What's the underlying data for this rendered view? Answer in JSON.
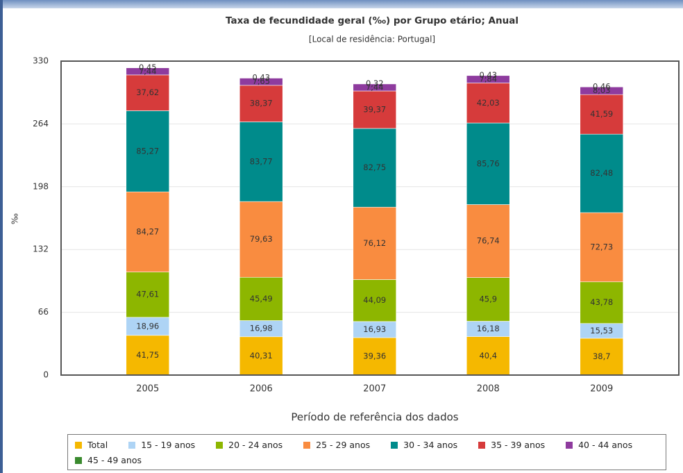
{
  "chart_data": {
    "type": "bar",
    "stacked": true,
    "title": "Taxa de fecundidade geral (‰) por Grupo etário; Anual",
    "subtitle": "[Local de residência: Portugal]",
    "y_label": "‰",
    "x_label": "Período de referência dos dados",
    "categories": [
      "2005",
      "2006",
      "2007",
      "2008",
      "2009"
    ],
    "ylim": [
      0,
      330
    ],
    "yticks": [
      0,
      66,
      132,
      198,
      264,
      330
    ],
    "grid": true,
    "series": [
      {
        "name": "Total",
        "color": "#f5b800",
        "values": [
          41.75,
          40.31,
          39.36,
          40.4,
          38.7
        ],
        "value_labels": [
          "41,75",
          "40,31",
          "39,36",
          "40,4",
          "38,7"
        ]
      },
      {
        "name": "15 - 19 anos",
        "color": "#aed4f5",
        "values": [
          18.96,
          16.98,
          16.93,
          16.18,
          15.53
        ],
        "value_labels": [
          "18,96",
          "16,98",
          "16,93",
          "16,18",
          "15,53"
        ]
      },
      {
        "name": "20 - 24 anos",
        "color": "#8db600",
        "values": [
          47.61,
          45.49,
          44.09,
          45.9,
          43.78
        ],
        "value_labels": [
          "47,61",
          "45,49",
          "44,09",
          "45,9",
          "43,78"
        ]
      },
      {
        "name": "25 - 29 anos",
        "color": "#f98c40",
        "values": [
          84.27,
          79.63,
          76.12,
          76.74,
          72.73
        ],
        "value_labels": [
          "84,27",
          "79,63",
          "76,12",
          "76,74",
          "72,73"
        ]
      },
      {
        "name": "30 - 34 anos",
        "color": "#008b8b",
        "values": [
          85.27,
          83.77,
          82.75,
          85.76,
          82.48
        ],
        "value_labels": [
          "85,27",
          "83,77",
          "82,75",
          "85,76",
          "82,48"
        ]
      },
      {
        "name": "35 - 39 anos",
        "color": "#d63b3b",
        "values": [
          37.62,
          38.37,
          39.37,
          42.03,
          41.59
        ],
        "value_labels": [
          "37,62",
          "38,37",
          "39,37",
          "42,03",
          "41,59"
        ]
      },
      {
        "name": "40 - 44 anos",
        "color": "#8e3b9e",
        "values": [
          7.44,
          7.65,
          7.44,
          7.84,
          8.03
        ],
        "value_labels": [
          "7,44",
          "7,65",
          "7,44",
          "7,84",
          "8,03"
        ]
      },
      {
        "name": "45 - 49 anos",
        "color": "#3a8a2e",
        "values": [
          0.45,
          0.43,
          0.32,
          0.43,
          0.46
        ],
        "value_labels": [
          "0,45",
          "0,43",
          "0,32",
          "0,43",
          "0,46"
        ]
      }
    ]
  }
}
